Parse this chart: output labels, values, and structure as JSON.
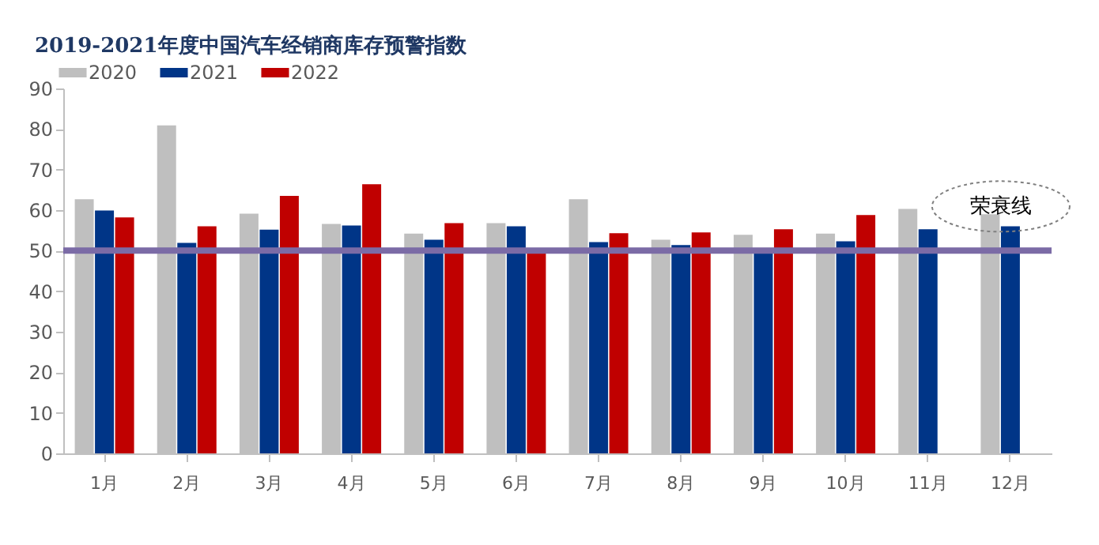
{
  "chart_data": {
    "type": "bar",
    "title": "2019-2021年度中国汽车经销商库存预警指数",
    "categories": [
      "1月",
      "2月",
      "3月",
      "4月",
      "5月",
      "6月",
      "7月",
      "8月",
      "9月",
      "10月",
      "11月",
      "12月"
    ],
    "series": [
      {
        "name": "2020",
        "color": "#bfbfbf",
        "values": [
          62.7,
          80.9,
          59.1,
          56.6,
          54.2,
          56.8,
          62.7,
          52.7,
          53.9,
          54.2,
          60.3,
          59
        ]
      },
      {
        "name": "2021",
        "color": "#003587",
        "values": [
          59.9,
          51.9,
          55.2,
          56.2,
          52.7,
          56.0,
          52.1,
          51.4,
          50,
          52.3,
          55.3,
          56.0
        ]
      },
      {
        "name": "2022",
        "color": "#c00000",
        "values": [
          58.2,
          56.0,
          63.5,
          66.4,
          56.8,
          49.9,
          54.3,
          54.5,
          55.3,
          58.8,
          null,
          null
        ]
      }
    ],
    "ylim": [
      0,
      90
    ],
    "yticks": [
      0,
      10,
      20,
      30,
      40,
      50,
      60,
      70,
      80,
      90
    ],
    "ref_lines": [
      {
        "axis": "y",
        "value": 50,
        "label": "荣衰线",
        "color": "#7b6ba6"
      }
    ],
    "legend": "top"
  }
}
